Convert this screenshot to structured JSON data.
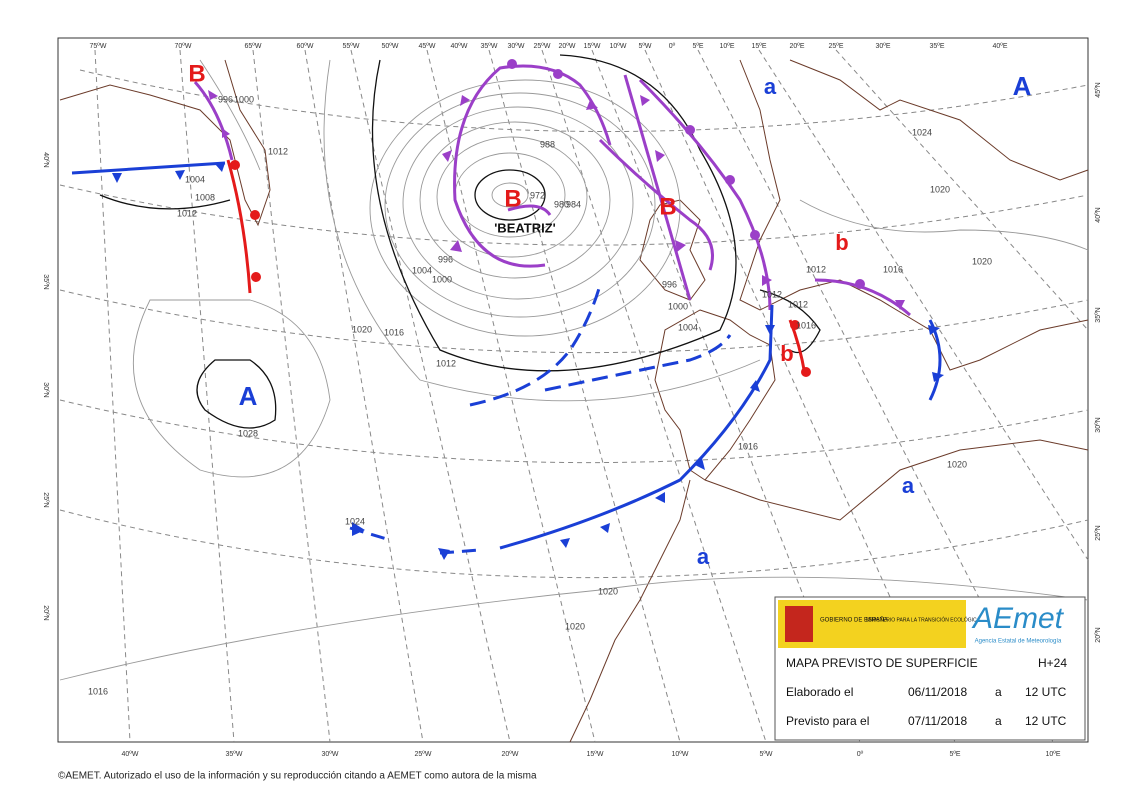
{
  "lon_top": [
    "75ºW",
    "70ºW",
    "65ºW",
    "60ºW",
    "55ºW",
    "50ºW",
    "45ºW",
    "40ºW",
    "35ºW",
    "30ºW",
    "25ºW",
    "20ºW",
    "15ºW",
    "10ºW",
    "5ºW",
    "0º",
    "5ºE",
    "10ºE",
    "15ºE",
    "20ºE",
    "25ºE",
    "30ºE",
    "35ºE",
    "40ºE"
  ],
  "lon_bottom": [
    "40ºW",
    "35ºW",
    "30ºW",
    "25ºW",
    "20ºW",
    "15ºW",
    "10ºW",
    "5ºW",
    "0º",
    "5ºE",
    "10ºE"
  ],
  "lat_left": [
    "40ºN",
    "35ºN",
    "30ºN",
    "25ºN",
    "20ºN"
  ],
  "lat_right": [
    "45ºN",
    "40ºN",
    "35ºN",
    "30ºN",
    "25ºN",
    "20ºN"
  ],
  "centers": [
    "B",
    "A",
    "a",
    "B",
    "'BEATRIZ'",
    "B",
    "b",
    "b",
    "A",
    "a",
    "a"
  ],
  "isobar_labels": [
    "996",
    "1000",
    "1012",
    "1004",
    "1008",
    "1012",
    "988",
    "972",
    "980",
    "984",
    "996",
    "1000",
    "1004",
    "1012",
    "1016",
    "1020",
    "1028",
    "1012",
    "1012",
    "1012",
    "1016",
    "1016",
    "1020",
    "1020",
    "1020",
    "1024",
    "1016",
    "1020",
    "1020",
    "1016",
    "1024",
    "996",
    "1000",
    "1004"
  ],
  "info": {
    "gov": "GOBIERNO DE ESPAÑA",
    "ministry": "MINISTERIO PARA LA TRANSICIÓN ECOLÓGICA",
    "logo": "AEmet",
    "agency": "Agencia Estatal de Meteorología",
    "title": "MAPA PREVISTO DE SUPERFICIE",
    "lead": "H+24",
    "made_label": "Elaborado el",
    "made_date": "06/11/2018",
    "made_a": "a",
    "made_time": "12 UTC",
    "valid_label": "Previsto para el",
    "valid_date": "07/11/2018",
    "valid_a": "a",
    "valid_time": "12 UTC"
  },
  "copyright": "©AEMET. Autorizado el uso de la información y su reproducción citando a AEMET como autora de la misma"
}
